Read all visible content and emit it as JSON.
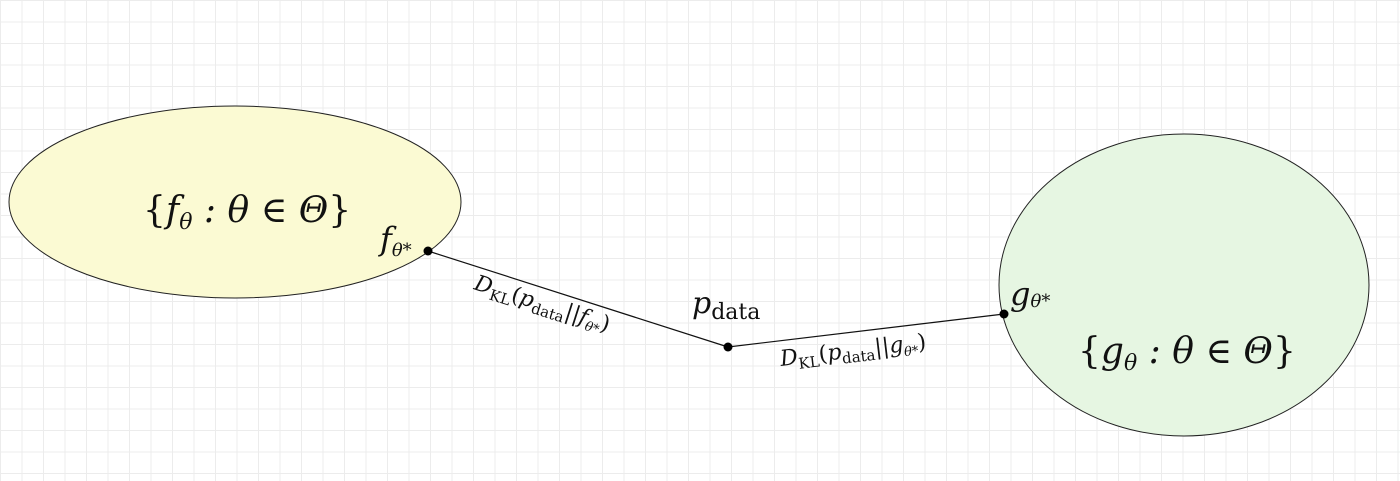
{
  "diagram": {
    "model_families": [
      {
        "set_label": {
          "open": "{",
          "func": "f",
          "sub": "θ",
          "rest": " : θ ∈ Θ",
          "close": "}"
        },
        "optimum_label": {
          "func": "f",
          "sub": "θ*"
        },
        "fill": "#fbfad3",
        "stroke": "#222222"
      },
      {
        "set_label": {
          "open": "{",
          "func": "g",
          "sub": "θ",
          "rest": " : θ ∈ Θ",
          "close": "}"
        },
        "optimum_label": {
          "func": "g",
          "sub": "θ*"
        },
        "fill": "#e6f6e2",
        "stroke": "#222222"
      }
    ],
    "data_point": {
      "var": "p",
      "sub": "data"
    },
    "distances": [
      {
        "D": "D",
        "Dsub": "KL",
        "open": "(",
        "p": "p",
        "psub": "data",
        "bar": "||",
        "q": "f",
        "qsub": "θ*",
        "close": ")"
      },
      {
        "D": "D",
        "Dsub": "KL",
        "open": "(",
        "p": "p",
        "psub": "data",
        "bar": "||",
        "q": "g",
        "qsub": "θ*",
        "close": ")"
      }
    ]
  }
}
